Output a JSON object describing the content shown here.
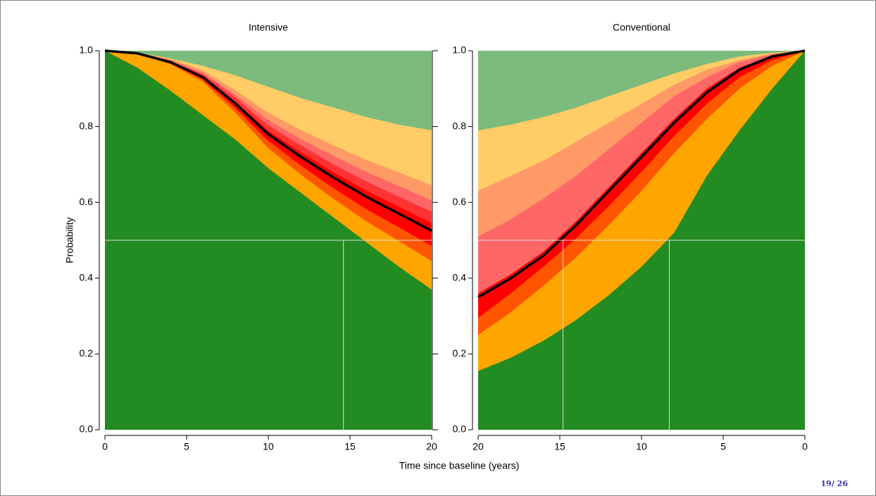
{
  "chart_data": [
    {
      "type": "area",
      "title": "Intensive",
      "ylabel": "Probability",
      "x": [
        0,
        2,
        4,
        6,
        8,
        10,
        12,
        14,
        16,
        18,
        20
      ],
      "xlim": [
        0,
        20
      ],
      "xticks": [
        0,
        5,
        10,
        15,
        20
      ],
      "ylim": [
        0,
        1
      ],
      "yticks": [
        {
          "value": 0,
          "label": "0.0"
        },
        0.2,
        0.4,
        0.6,
        0.8,
        {
          "value": 1,
          "label": "1.0"
        }
      ],
      "hline": 0.5,
      "vlines": [
        14.6
      ],
      "series": [
        {
          "color": "#7dba7d",
          "values": [
            1,
            1,
            1,
            1,
            1,
            1,
            1,
            1,
            1,
            1,
            1
          ]
        },
        {
          "color": "#ffcc66",
          "values": [
            1,
            0.995,
            0.98,
            0.96,
            0.935,
            0.905,
            0.875,
            0.85,
            0.825,
            0.805,
            0.79
          ]
        },
        {
          "color": "#ff9966",
          "values": [
            1,
            0.995,
            0.978,
            0.948,
            0.895,
            0.836,
            0.791,
            0.75,
            0.712,
            0.679,
            0.645
          ]
        },
        {
          "color": "#ff6666",
          "values": [
            1,
            0.994,
            0.975,
            0.942,
            0.883,
            0.817,
            0.767,
            0.722,
            0.68,
            0.643,
            0.605
          ]
        },
        {
          "color": "#ff3333",
          "values": [
            1,
            0.994,
            0.973,
            0.938,
            0.875,
            0.803,
            0.75,
            0.7,
            0.655,
            0.615,
            0.575
          ]
        },
        {
          "color": "#ff0000",
          "values": [
            1,
            0.993,
            0.971,
            0.933,
            0.866,
            0.789,
            0.732,
            0.679,
            0.631,
            0.588,
            0.545
          ]
        },
        {
          "color": "#ff5500",
          "values": [
            1,
            0.992,
            0.968,
            0.924,
            0.848,
            0.762,
            0.697,
            0.637,
            0.582,
            0.534,
            0.485
          ]
        },
        {
          "color": "#ffa500",
          "values": [
            1,
            0.992,
            0.965,
            0.918,
            0.836,
            0.743,
            0.673,
            0.609,
            0.55,
            0.498,
            0.445
          ]
        },
        {
          "color": "#228b22",
          "values": [
            1,
            0.955,
            0.895,
            0.83,
            0.765,
            0.69,
            0.625,
            0.56,
            0.495,
            0.43,
            0.37
          ]
        },
        {
          "color": "#000000",
          "style": "line",
          "values": [
            1,
            0.993,
            0.97,
            0.93,
            0.86,
            0.78,
            0.72,
            0.665,
            0.615,
            0.57,
            0.525
          ]
        }
      ]
    },
    {
      "type": "area",
      "title": "Conventional",
      "x": [
        0,
        2,
        4,
        6,
        8,
        10,
        12,
        14,
        16,
        18,
        20
      ],
      "xlim": [
        20,
        0
      ],
      "xticks": [
        20,
        15,
        10,
        5,
        0
      ],
      "ylim": [
        0,
        1
      ],
      "yticks": [
        {
          "value": 0,
          "label": "0.0"
        },
        0.2,
        0.4,
        0.6,
        0.8,
        {
          "value": 1,
          "label": "1.0"
        }
      ],
      "hline": 0.5,
      "vlines": [
        14.8,
        8.3
      ],
      "series": [
        {
          "color": "#7dba7d",
          "values": [
            1,
            1,
            1,
            1,
            1,
            1,
            1,
            1,
            1,
            1,
            1
          ]
        },
        {
          "color": "#ffcc66",
          "values": [
            1,
            0.995,
            0.985,
            0.965,
            0.94,
            0.91,
            0.88,
            0.85,
            0.825,
            0.805,
            0.79
          ]
        },
        {
          "color": "#ff9966",
          "values": [
            1,
            0.993,
            0.975,
            0.95,
            0.91,
            0.86,
            0.81,
            0.76,
            0.71,
            0.67,
            0.63
          ]
        },
        {
          "color": "#ff6666",
          "values": [
            1,
            0.99,
            0.97,
            0.93,
            0.88,
            0.81,
            0.74,
            0.67,
            0.61,
            0.555,
            0.51
          ]
        },
        {
          "color": "#ff0000",
          "values": [
            1,
            0.988,
            0.955,
            0.9,
            0.82,
            0.73,
            0.64,
            0.55,
            0.47,
            0.41,
            0.36
          ]
        },
        {
          "color": "#ff5500",
          "values": [
            1,
            0.975,
            0.93,
            0.86,
            0.775,
            0.68,
            0.59,
            0.505,
            0.43,
            0.36,
            0.295
          ]
        },
        {
          "color": "#ffa500",
          "values": [
            1,
            0.96,
            0.9,
            0.82,
            0.73,
            0.63,
            0.54,
            0.455,
            0.38,
            0.31,
            0.25
          ]
        },
        {
          "color": "#228b22",
          "values": [
            1,
            0.9,
            0.79,
            0.67,
            0.52,
            0.43,
            0.355,
            0.29,
            0.235,
            0.19,
            0.155
          ]
        },
        {
          "color": "#000000",
          "style": "line",
          "values": [
            1,
            0.985,
            0.95,
            0.89,
            0.81,
            0.72,
            0.63,
            0.54,
            0.46,
            0.4,
            0.35
          ]
        }
      ]
    }
  ],
  "xlabel": "Time since baseline (years)",
  "page_number": "19/ 26"
}
